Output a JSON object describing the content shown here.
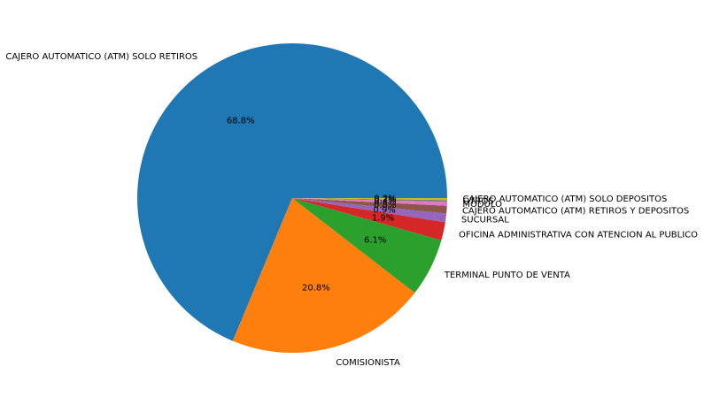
{
  "chart_data": {
    "type": "pie",
    "title": "",
    "start_angle_deg": 0,
    "direction": "counterclockwise",
    "slices": [
      {
        "label": "CAJERO AUTOMATICO (ATM) SOLO RETIROS",
        "value": 68.8,
        "pct_label": "68.8%",
        "color": "#1f77b4"
      },
      {
        "label": "COMISIONISTA",
        "value": 20.8,
        "pct_label": "20.8%",
        "color": "#ff7f0e"
      },
      {
        "label": "TERMINAL PUNTO DE VENTA",
        "value": 6.1,
        "pct_label": "6.1%",
        "color": "#2ca02c"
      },
      {
        "label": "OFICINA ADMINISTRATIVA CON ATENCION AL PUBLICO",
        "value": 1.9,
        "pct_label": "1.9%",
        "color": "#d62728"
      },
      {
        "label": "SUCURSAL",
        "value": 0.9,
        "pct_label": "0.9%",
        "color": "#9467bd"
      },
      {
        "label": "CAJERO AUTOMATICO (ATM) RETIROS Y DEPOSITOS",
        "value": 0.8,
        "pct_label": "0.8%",
        "color": "#8c564b"
      },
      {
        "label": "MODULO",
        "value": 0.4,
        "pct_label": "0.4%",
        "color": "#e377c2"
      },
      {
        "label": "OTROS",
        "value": 0.2,
        "pct_label": "0.2%",
        "color": "#7f7f7f"
      },
      {
        "label": "CAJERO AUTOMATICO (ATM) SOLO DEPOSITOS",
        "value": 0.2,
        "pct_label": "0.2%",
        "color": "#bcbd22"
      }
    ]
  }
}
